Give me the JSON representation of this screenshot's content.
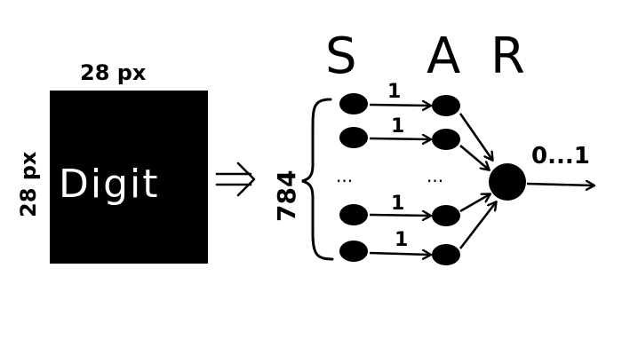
{
  "image": {
    "label": "Digit",
    "width_label": "28 px",
    "height_label": "28 px"
  },
  "input_count_label": "784",
  "layers": {
    "sensory": "S",
    "associative": "A",
    "response": "R"
  },
  "weights": [
    "1",
    "1",
    "1",
    "1"
  ],
  "ellipsis": [
    "...",
    "..."
  ],
  "output_range": "0...1",
  "colors": {
    "ink": "#000000",
    "background": "#ffffff",
    "digit_text": "#ffffff"
  }
}
